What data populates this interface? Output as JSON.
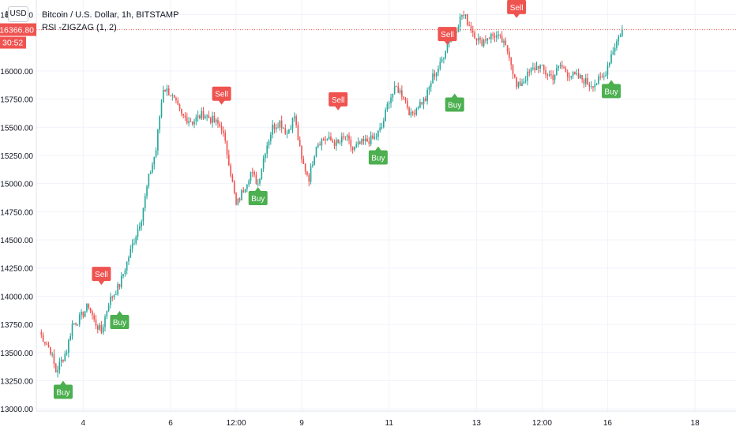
{
  "header": {
    "symbol_title": "Bitcoin / U.S. Dollar, 1h, BITSTAMP",
    "indicator_title": "RSI -ZIGZAG (1, 2)",
    "currency_button": "USD"
  },
  "colors": {
    "up": "#26a69a",
    "down": "#ef5350",
    "sell": "#ef5350",
    "buy": "#4caf50",
    "grid": "#f0f3fa",
    "axis_text": "#131722",
    "price_line": "#ef5350"
  },
  "chart_data": {
    "type": "candlestick",
    "title": "Bitcoin / U.S. Dollar, 1h, BITSTAMP",
    "indicator": "RSI -ZIGZAG (1, 2)",
    "ylim": [
      12980,
      16630
    ],
    "y_ticks": [
      "13000.00",
      "13250.00",
      "13500.00",
      "13750.00",
      "14000.00",
      "14250.00",
      "14500.00",
      "14750.00",
      "15000.00",
      "15250.00",
      "15500.00",
      "15750.00",
      "16000.00",
      "16500.00"
    ],
    "partial_tick_label": "16",
    "x_range_hours": [
      0,
      376
    ],
    "x_ticks": [
      {
        "label": "4",
        "hour": 24
      },
      {
        "label": "6",
        "hour": 72
      },
      {
        "label": "12:00",
        "hour": 108
      },
      {
        "label": "9",
        "hour": 144
      },
      {
        "label": "11",
        "hour": 192
      },
      {
        "label": "13",
        "hour": 240
      },
      {
        "label": "12:00",
        "hour": 276
      },
      {
        "label": "16",
        "hour": 312
      },
      {
        "label": "18",
        "hour": 360
      }
    ],
    "last_price": "16366.80",
    "countdown": "30:52",
    "last_price_value": 16366.8,
    "anchors": [
      [
        0,
        13680
      ],
      [
        6,
        13520
      ],
      [
        9,
        13330
      ],
      [
        15,
        13520
      ],
      [
        18,
        13750
      ],
      [
        22,
        13800
      ],
      [
        27,
        13920
      ],
      [
        30,
        13780
      ],
      [
        34,
        13680
      ],
      [
        38,
        13950
      ],
      [
        44,
        14100
      ],
      [
        50,
        14400
      ],
      [
        56,
        14700
      ],
      [
        60,
        15050
      ],
      [
        64,
        15300
      ],
      [
        66,
        15600
      ],
      [
        68,
        15850
      ],
      [
        72,
        15800
      ],
      [
        78,
        15600
      ],
      [
        84,
        15550
      ],
      [
        90,
        15620
      ],
      [
        96,
        15550
      ],
      [
        100,
        15500
      ],
      [
        104,
        15200
      ],
      [
        108,
        14800
      ],
      [
        112,
        14950
      ],
      [
        116,
        15100
      ],
      [
        120,
        15000
      ],
      [
        124,
        15300
      ],
      [
        128,
        15500
      ],
      [
        132,
        15550
      ],
      [
        136,
        15450
      ],
      [
        140,
        15600
      ],
      [
        144,
        15200
      ],
      [
        148,
        15050
      ],
      [
        152,
        15350
      ],
      [
        156,
        15400
      ],
      [
        160,
        15380
      ],
      [
        164,
        15350
      ],
      [
        168,
        15420
      ],
      [
        172,
        15300
      ],
      [
        176,
        15350
      ],
      [
        180,
        15380
      ],
      [
        184,
        15400
      ],
      [
        188,
        15500
      ],
      [
        192,
        15750
      ],
      [
        196,
        15850
      ],
      [
        200,
        15780
      ],
      [
        204,
        15600
      ],
      [
        208,
        15700
      ],
      [
        212,
        15750
      ],
      [
        216,
        15950
      ],
      [
        220,
        16050
      ],
      [
        224,
        16250
      ],
      [
        228,
        16350
      ],
      [
        232,
        16500
      ],
      [
        234,
        16470
      ],
      [
        238,
        16350
      ],
      [
        242,
        16250
      ],
      [
        246,
        16300
      ],
      [
        250,
        16320
      ],
      [
        254,
        16260
      ],
      [
        258,
        16150
      ],
      [
        262,
        15850
      ],
      [
        266,
        15920
      ],
      [
        270,
        16000
      ],
      [
        274,
        16050
      ],
      [
        278,
        15980
      ],
      [
        282,
        15950
      ],
      [
        286,
        16050
      ],
      [
        290,
        15980
      ],
      [
        294,
        15950
      ],
      [
        298,
        15930
      ],
      [
        302,
        15880
      ],
      [
        306,
        15900
      ],
      [
        310,
        15950
      ],
      [
        314,
        16150
      ],
      [
        318,
        16300
      ],
      [
        320,
        16366.8
      ]
    ],
    "signals": [
      {
        "type": "Sell",
        "hour": 34,
        "price": 14100
      },
      {
        "type": "Buy",
        "hour": 13,
        "price": 13250
      },
      {
        "type": "Buy",
        "hour": 44,
        "price": 13870
      },
      {
        "type": "Sell",
        "hour": 100,
        "price": 15700
      },
      {
        "type": "Buy",
        "hour": 120,
        "price": 14970
      },
      {
        "type": "Sell",
        "hour": 164,
        "price": 15650
      },
      {
        "type": "Buy",
        "hour": 186,
        "price": 15330
      },
      {
        "type": "Sell",
        "hour": 224,
        "price": 16230
      },
      {
        "type": "Buy",
        "hour": 228,
        "price": 15800
      },
      {
        "type": "Sell",
        "hour": 262,
        "price": 16470
      },
      {
        "type": "Buy",
        "hour": 314,
        "price": 15920
      }
    ]
  }
}
